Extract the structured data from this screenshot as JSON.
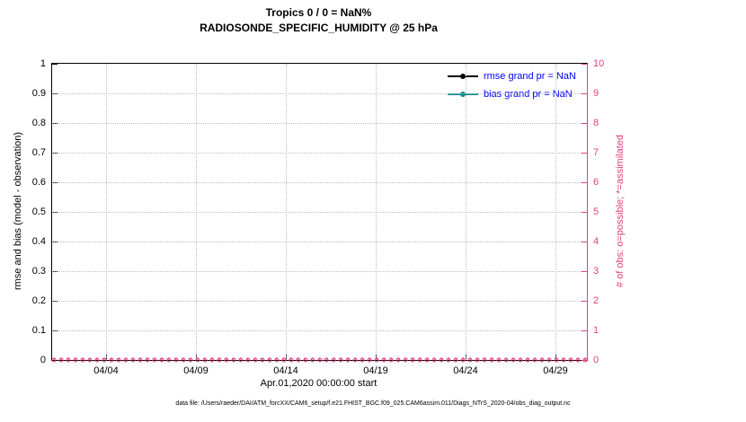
{
  "chart_data": {
    "type": "line",
    "title": "Tropics 0 / 0 = NaN%",
    "subtitle": "RADIOSONDE_SPECIFIC_HUMIDITY @ 25 hPa",
    "xlabel": "Apr.01,2020 00:00:00 start",
    "x_range_days": [
      1,
      30.75
    ],
    "x_ticks": [
      {
        "day": 4,
        "label": "04/04"
      },
      {
        "day": 9,
        "label": "04/09"
      },
      {
        "day": 14,
        "label": "04/14"
      },
      {
        "day": 19,
        "label": "04/19"
      },
      {
        "day": 24,
        "label": "04/24"
      },
      {
        "day": 29,
        "label": "04/29"
      }
    ],
    "left_axis": {
      "label": "rmse and bias (model - observation)",
      "min": 0,
      "max": 1,
      "ticks": [
        0,
        0.1,
        0.2,
        0.3,
        0.4,
        0.5,
        0.6,
        0.7,
        0.8,
        0.9,
        1
      ],
      "tick_labels": [
        "0",
        "0.1",
        "0.2",
        "0.3",
        "0.4",
        "0.5",
        "0.6",
        "0.7",
        "0.8",
        "0.9",
        "1"
      ]
    },
    "right_axis": {
      "label": "# of obs: o=possible; *=assimilated",
      "min": 0,
      "max": 10,
      "ticks": [
        0,
        1,
        2,
        3,
        4,
        5,
        6,
        7,
        8,
        9,
        10
      ],
      "tick_labels": [
        "0",
        "1",
        "2",
        "3",
        "4",
        "5",
        "6",
        "7",
        "8",
        "9",
        "10"
      ],
      "color": "#e0417e"
    },
    "grid": true,
    "legend": {
      "position": "top-right-inside",
      "text_color": "#0000ff",
      "entries": [
        {
          "label": "rmse grand pr = NaN",
          "color": "#000000",
          "marker": "filled-circle"
        },
        {
          "label": "bias grand pr = NaN",
          "color": "#008b8b",
          "marker": "filled-circle"
        }
      ]
    },
    "series": [
      {
        "name": "rmse",
        "values": "NaN - no curve plotted"
      },
      {
        "name": "bias",
        "values": "NaN - no curve plotted"
      }
    ],
    "obs_counts": {
      "description": "observation counts per time bin, all zero, plotted along y=0 on right axis",
      "possible_marker": "o",
      "assimilated_marker": "*",
      "value_all_bins": 0,
      "bins": 75,
      "color": "#e0417e"
    }
  },
  "footer": {
    "text": "data file: /Users/raeder/DAI/ATM_forcXX/CAM6_setup/f.e21.FHIST_BGC.f09_025.CAM6assim.011/Diags_NTrS_2020-04/obs_diag_output.nc"
  }
}
